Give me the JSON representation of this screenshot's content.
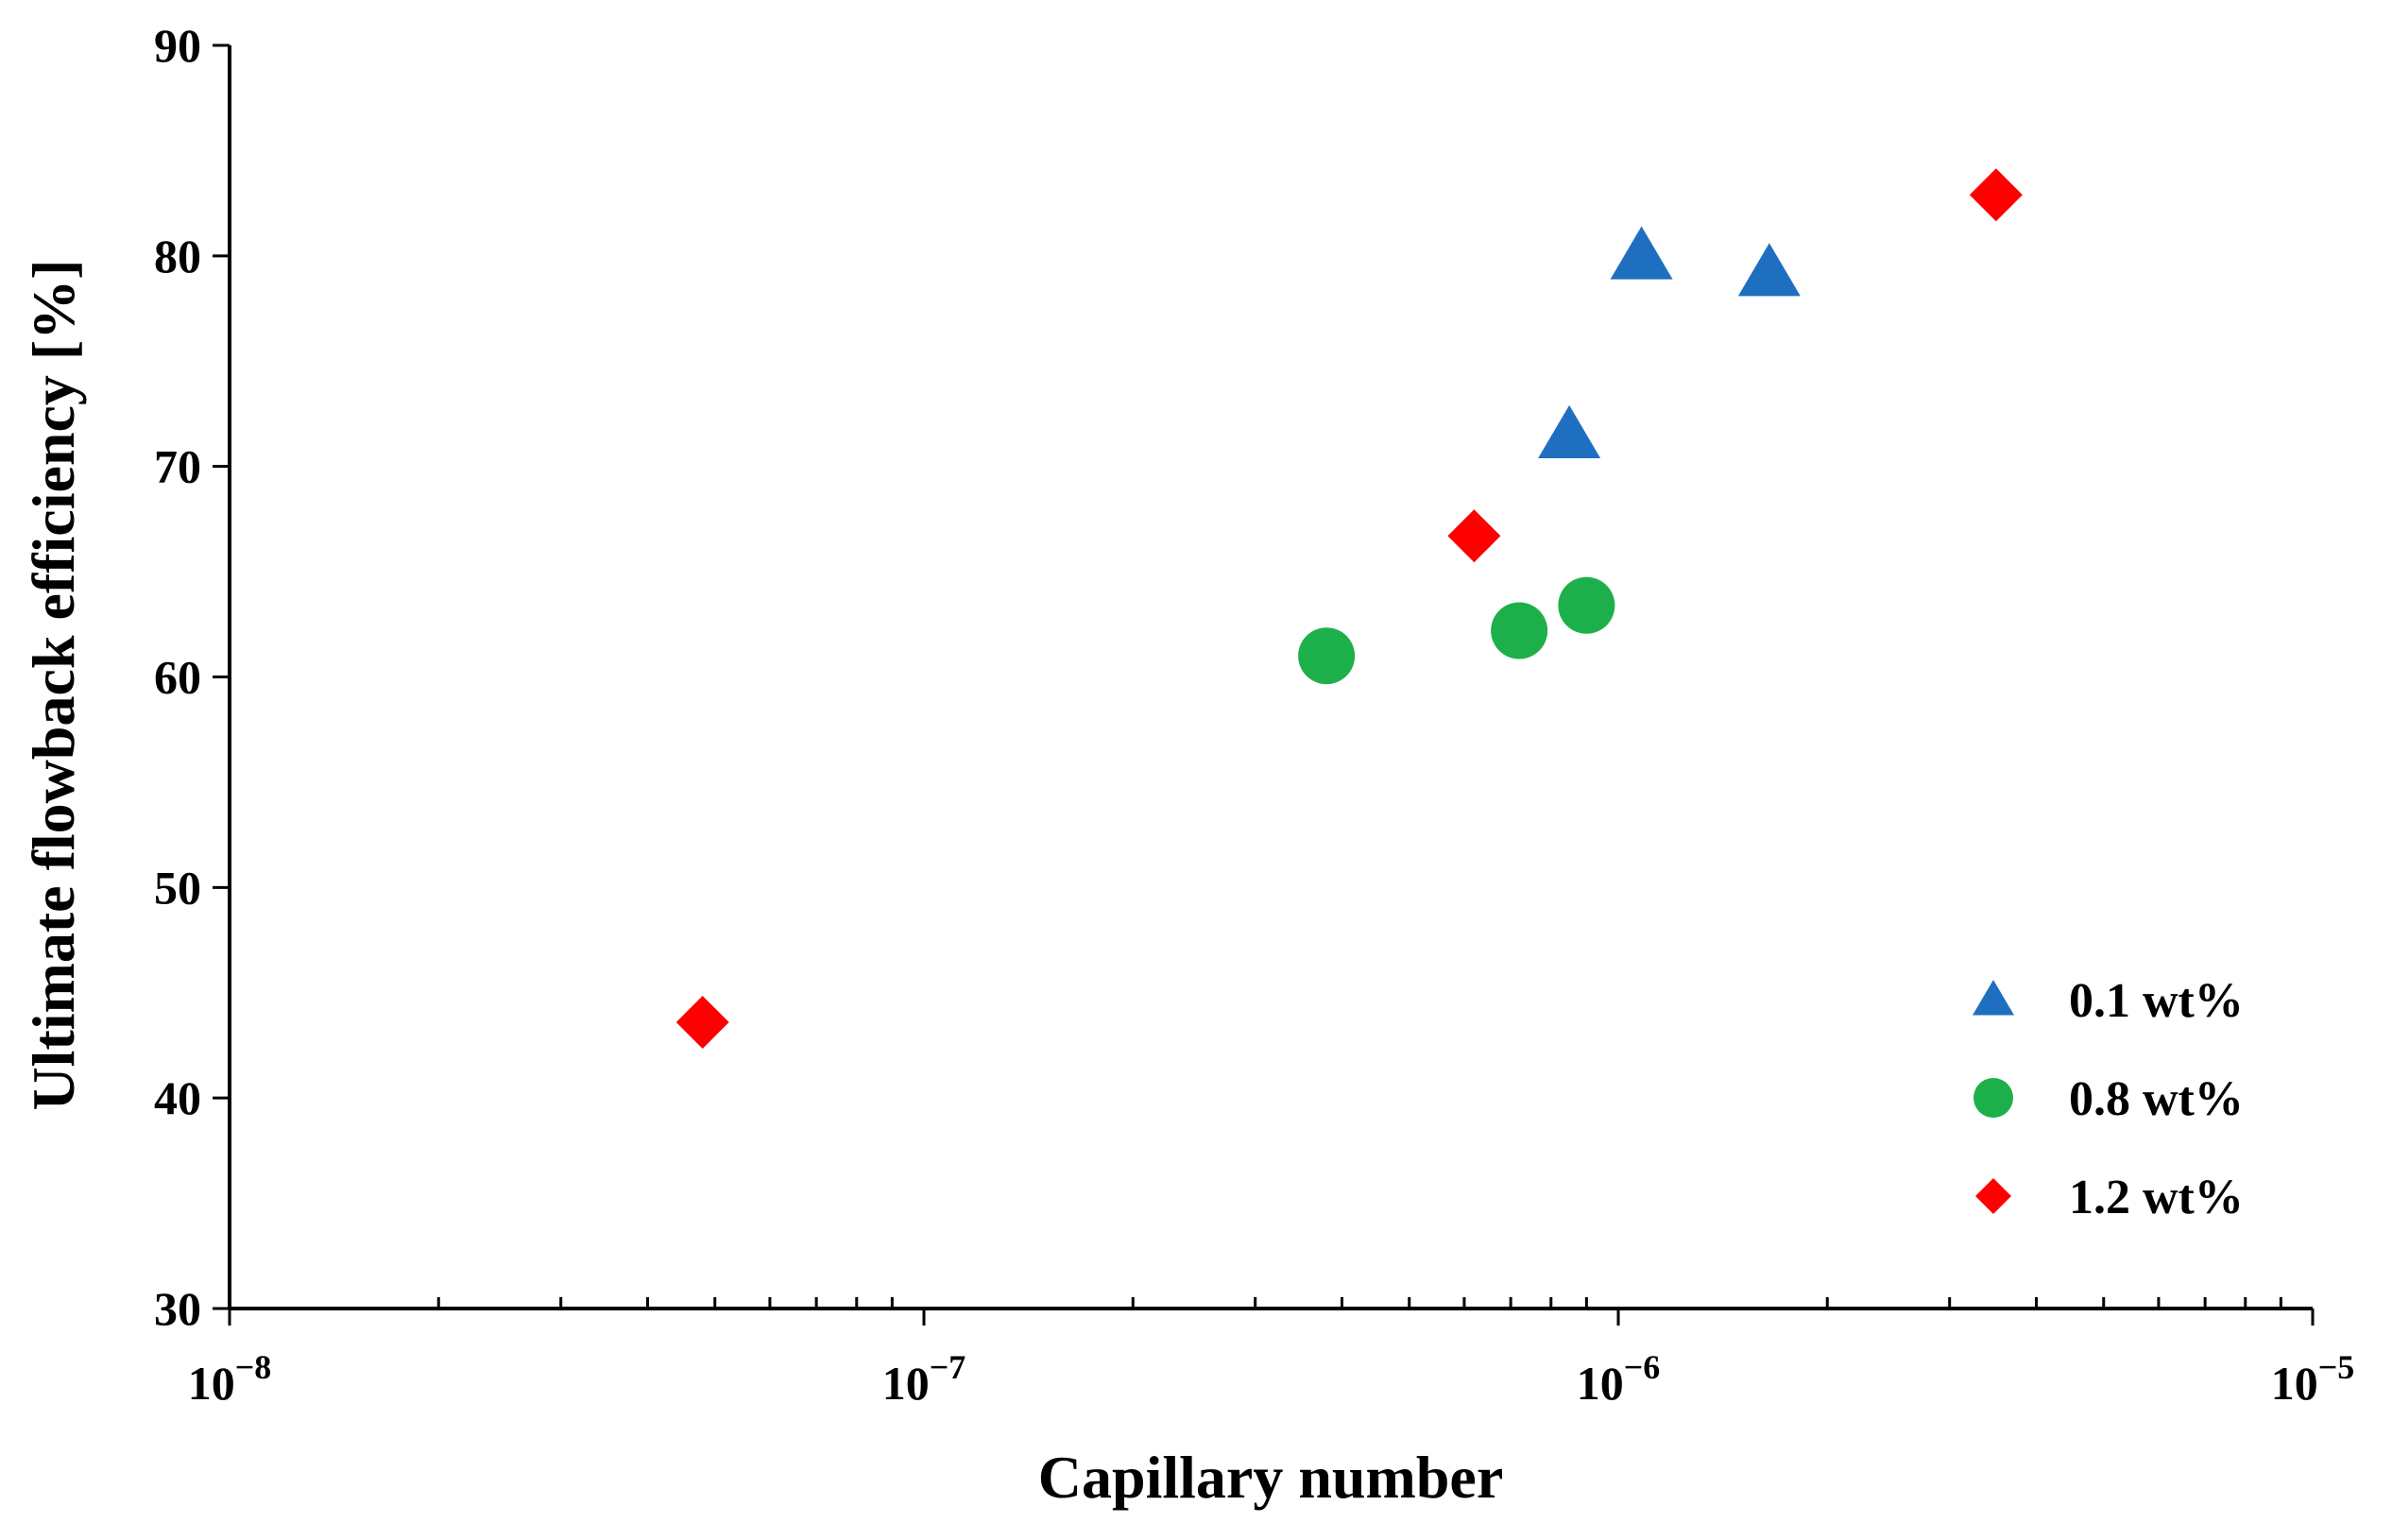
{
  "chart_data": {
    "type": "scatter",
    "xlabel": "Capillary number",
    "ylabel": "Ultimate flowback efficiency [%]",
    "xscale": "log",
    "xlim": [
      1e-08,
      1e-05
    ],
    "ylim": [
      30,
      90
    ],
    "x_major_ticks": [
      {
        "value": 1e-08,
        "mantissa": "10",
        "exponent": "−8"
      },
      {
        "value": 1e-07,
        "mantissa": "10",
        "exponent": "−7"
      },
      {
        "value": 1e-06,
        "mantissa": "10",
        "exponent": "−6"
      },
      {
        "value": 1e-05,
        "mantissa": "10",
        "exponent": "−5"
      }
    ],
    "y_ticks": [
      30,
      40,
      50,
      60,
      70,
      80,
      90
    ],
    "grid": false,
    "legend_position": "bottom-right",
    "series": [
      {
        "name": "0.1 wt%",
        "marker": "triangle",
        "color": "#1f6fc0",
        "points": [
          {
            "x": 8.5e-07,
            "y": 71.5
          },
          {
            "x": 1.08e-06,
            "y": 80.0
          },
          {
            "x": 1.65e-06,
            "y": 79.2
          }
        ]
      },
      {
        "name": "0.8 wt%",
        "marker": "circle",
        "color": "#1db04a",
        "points": [
          {
            "x": 3.8e-07,
            "y": 61.0
          },
          {
            "x": 7.2e-07,
            "y": 62.2
          },
          {
            "x": 9e-07,
            "y": 63.4
          }
        ]
      },
      {
        "name": "1.2 wt%",
        "marker": "diamond",
        "color": "#ff0000",
        "points": [
          {
            "x": 4.8e-08,
            "y": 43.6
          },
          {
            "x": 6.2e-07,
            "y": 66.7
          },
          {
            "x": 3.5e-06,
            "y": 82.9
          }
        ]
      }
    ]
  }
}
